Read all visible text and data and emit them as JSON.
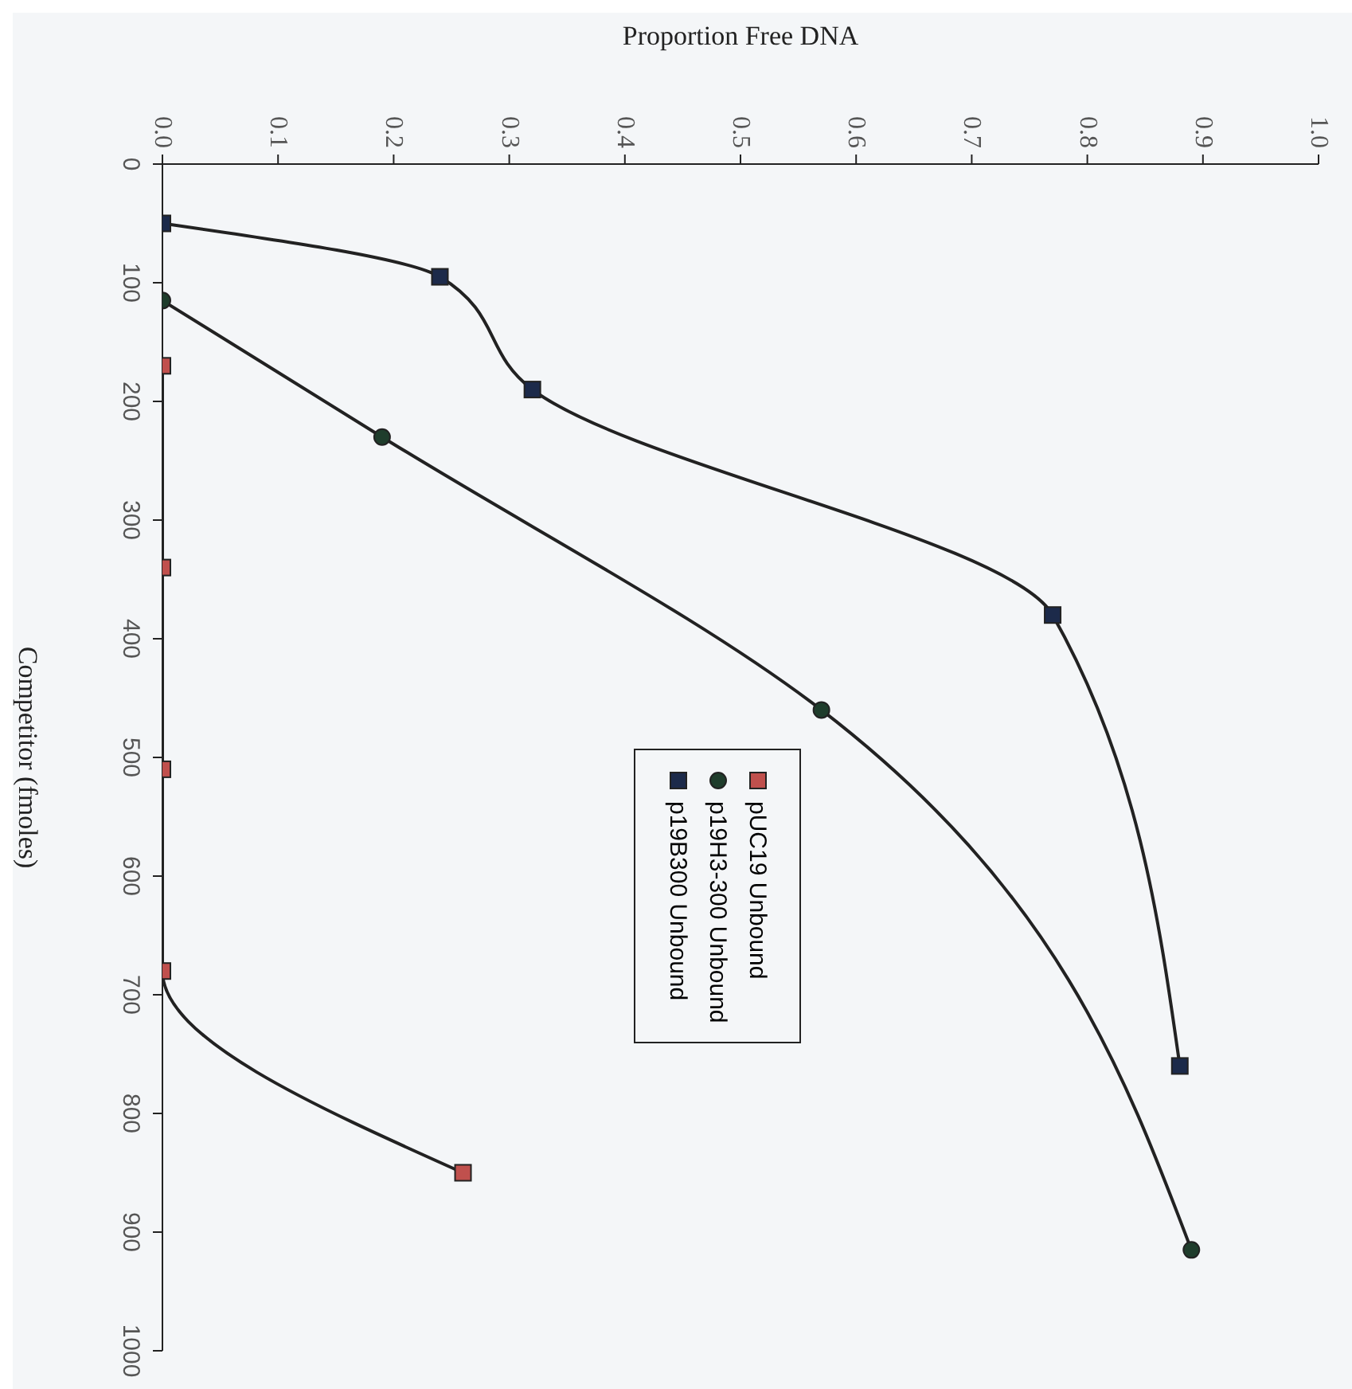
{
  "chart_data": {
    "type": "line",
    "xlabel": "Proportion Free DNA",
    "ylabel": "Competitor (fmoles)",
    "xlim": [
      0,
      1
    ],
    "xticks": [
      {
        "value": 0,
        "label": "0.0"
      },
      {
        "value": 0.1,
        "label": "0.1"
      },
      {
        "value": 0.2,
        "label": "0.2"
      },
      {
        "value": 0.3,
        "label": "0.3"
      },
      {
        "value": 0.4,
        "label": "0.4"
      },
      {
        "value": 0.5,
        "label": "0.5"
      },
      {
        "value": 0.6,
        "label": "0.6"
      },
      {
        "value": 0.7,
        "label": "0.7"
      },
      {
        "value": 0.8,
        "label": "0.8"
      },
      {
        "value": 0.9,
        "label": "0.9"
      },
      {
        "value": 1,
        "label": "1.0"
      }
    ],
    "ylim": [
      1000,
      0
    ],
    "yticks": [
      0,
      100,
      200,
      300,
      400,
      500,
      600,
      700,
      800,
      900,
      1000
    ],
    "grid": false,
    "legend": "center",
    "series": [
      {
        "name": "pUC19 Unbound",
        "color": "#c0504d",
        "marker": "square",
        "x": [
          0,
          0,
          0,
          0,
          0.26
        ],
        "values": [
          170,
          340,
          510,
          680,
          850
        ]
      },
      {
        "name": "p19H3-300 Unbound",
        "color": "#1f3d2c",
        "marker": "circle",
        "x": [
          0,
          0.19,
          0.57,
          0.89
        ],
        "values": [
          115,
          230,
          460,
          915
        ]
      },
      {
        "name": "p19B300 Unbound",
        "color": "#1c2a4a",
        "marker": "square",
        "x": [
          0,
          0.24,
          0.32,
          0.77,
          0.88
        ],
        "values": [
          50,
          95,
          190,
          380,
          760
        ]
      }
    ]
  }
}
